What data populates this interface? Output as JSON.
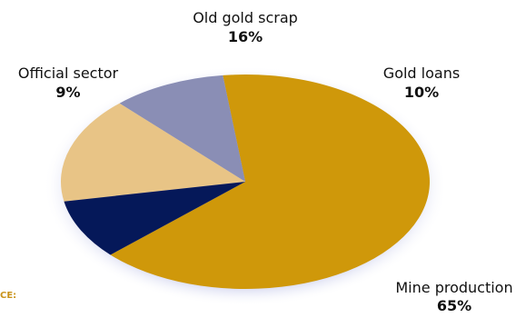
{
  "chart_data": {
    "type": "pie",
    "title": "",
    "source_label": "CE:",
    "slices": [
      {
        "label": "Mine production",
        "value": 65,
        "value_label": "65%",
        "color": "#cf980a"
      },
      {
        "label": "Gold loans",
        "value": 10,
        "value_label": "10%",
        "color": "#8a8eb5"
      },
      {
        "label": "Old gold scrap",
        "value": 16,
        "value_label": "16%",
        "color": "#e8c486"
      },
      {
        "label": "Official sector",
        "value": 9,
        "value_label": "9%",
        "color": "#051859"
      }
    ],
    "legend": "none",
    "label_placement": "outside"
  }
}
